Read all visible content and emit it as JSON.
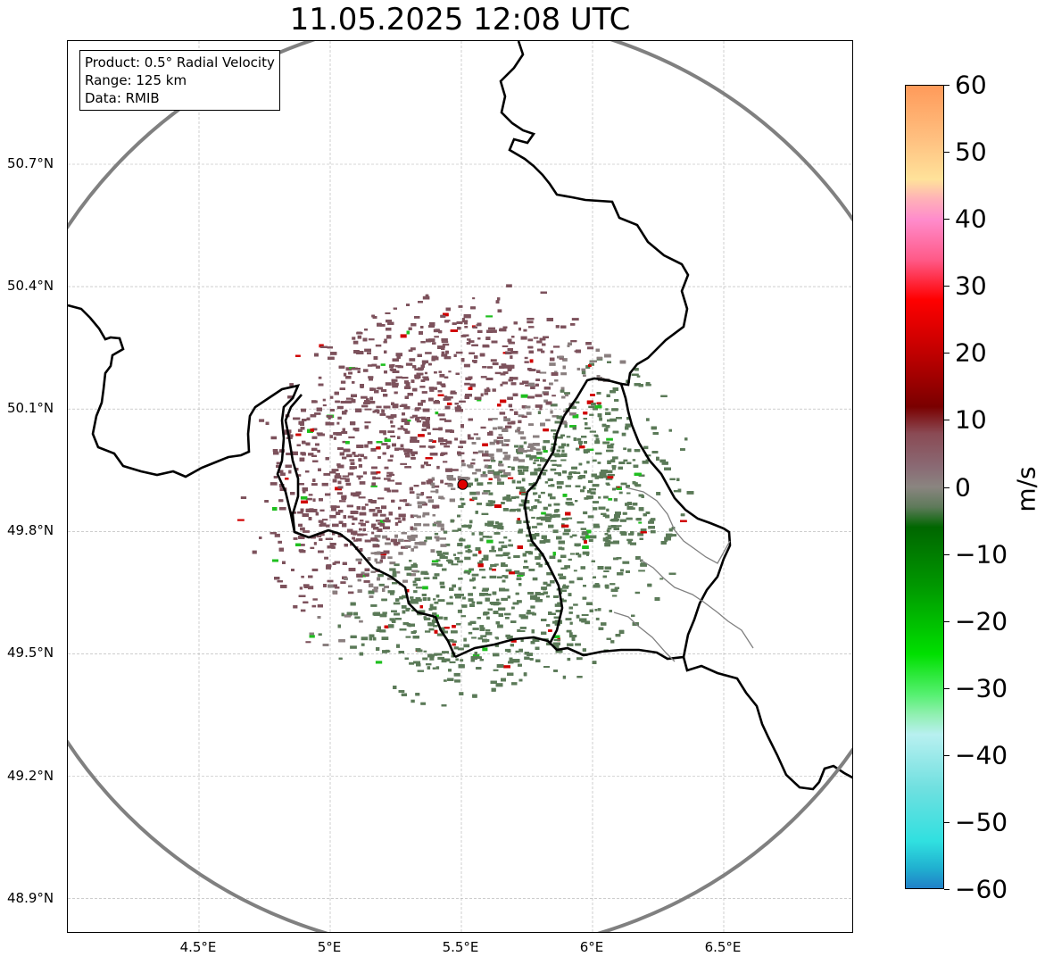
{
  "title": "11.05.2025 12:08 UTC",
  "info_box": {
    "product": "Product: 0.5° Radial Velocity",
    "range": "Range: 125 km",
    "source": "Data: RMIB"
  },
  "map": {
    "lon_range": [
      4.0,
      7.0
    ],
    "lat_range": [
      48.8,
      51.0
    ],
    "x_ticks": [
      {
        "lon": 4.5,
        "label": "4.5°E"
      },
      {
        "lon": 5.0,
        "label": "5°E"
      },
      {
        "lon": 5.5,
        "label": "5.5°E"
      },
      {
        "lon": 6.0,
        "label": "6°E"
      },
      {
        "lon": 6.5,
        "label": "6.5°E"
      }
    ],
    "y_ticks": [
      {
        "lat": 50.7,
        "label": "50.7°N"
      },
      {
        "lat": 50.4,
        "label": "50.4°N"
      },
      {
        "lat": 50.1,
        "label": "50.1°N"
      },
      {
        "lat": 49.8,
        "label": "49.8°N"
      },
      {
        "lat": 49.5,
        "label": "49.5°N"
      },
      {
        "lat": 49.2,
        "label": "49.2°N"
      },
      {
        "lat": 48.9,
        "label": "48.9°N"
      }
    ],
    "grid": true,
    "radar_site": {
      "lon": 5.505,
      "lat": 49.915,
      "color": "#e00000"
    },
    "range_ring_km": 125,
    "range_ring_color": "#808080",
    "echo_colors": {
      "approaching": "#5b7a58",
      "receding": "#7d525c",
      "neutral": "#8a7f7f",
      "strong_in": "#1fbf1f",
      "strong_out": "#d00000"
    }
  },
  "colorbar": {
    "min": -60,
    "max": 60,
    "ticks": [
      {
        "value": 60,
        "label": "60"
      },
      {
        "value": 50,
        "label": "50"
      },
      {
        "value": 40,
        "label": "40"
      },
      {
        "value": 30,
        "label": "30"
      },
      {
        "value": 20,
        "label": "20"
      },
      {
        "value": 10,
        "label": "10"
      },
      {
        "value": 0,
        "label": "0"
      },
      {
        "value": -10,
        "label": "−10"
      },
      {
        "value": -20,
        "label": "−20"
      },
      {
        "value": -30,
        "label": "−30"
      },
      {
        "value": -40,
        "label": "−40"
      },
      {
        "value": -50,
        "label": "−50"
      },
      {
        "value": -60,
        "label": "−60"
      }
    ],
    "unit": "m/s",
    "stops": [
      {
        "value": 60,
        "color": "#ff9a5a"
      },
      {
        "value": 52,
        "color": "#ffc080"
      },
      {
        "value": 46,
        "color": "#ffe29a"
      },
      {
        "value": 43,
        "color": "#ffb0b8"
      },
      {
        "value": 40,
        "color": "#ff8ccc"
      },
      {
        "value": 34,
        "color": "#ff5a88"
      },
      {
        "value": 28,
        "color": "#ff0000"
      },
      {
        "value": 20,
        "color": "#c00000"
      },
      {
        "value": 12,
        "color": "#7a0000"
      },
      {
        "value": 8,
        "color": "#8a4a54"
      },
      {
        "value": 3,
        "color": "#8a6a74"
      },
      {
        "value": 0,
        "color": "#8a8580"
      },
      {
        "value": -3,
        "color": "#5e7a5a"
      },
      {
        "value": -6,
        "color": "#006600"
      },
      {
        "value": -15,
        "color": "#009900"
      },
      {
        "value": -25,
        "color": "#00e000"
      },
      {
        "value": -31,
        "color": "#55f070"
      },
      {
        "value": -34,
        "color": "#90f0b0"
      },
      {
        "value": -37,
        "color": "#b8f0f0"
      },
      {
        "value": -45,
        "color": "#70e0e0"
      },
      {
        "value": -53,
        "color": "#30e0e0"
      },
      {
        "value": -57,
        "color": "#20b0d0"
      },
      {
        "value": -60,
        "color": "#2080c8"
      }
    ]
  }
}
